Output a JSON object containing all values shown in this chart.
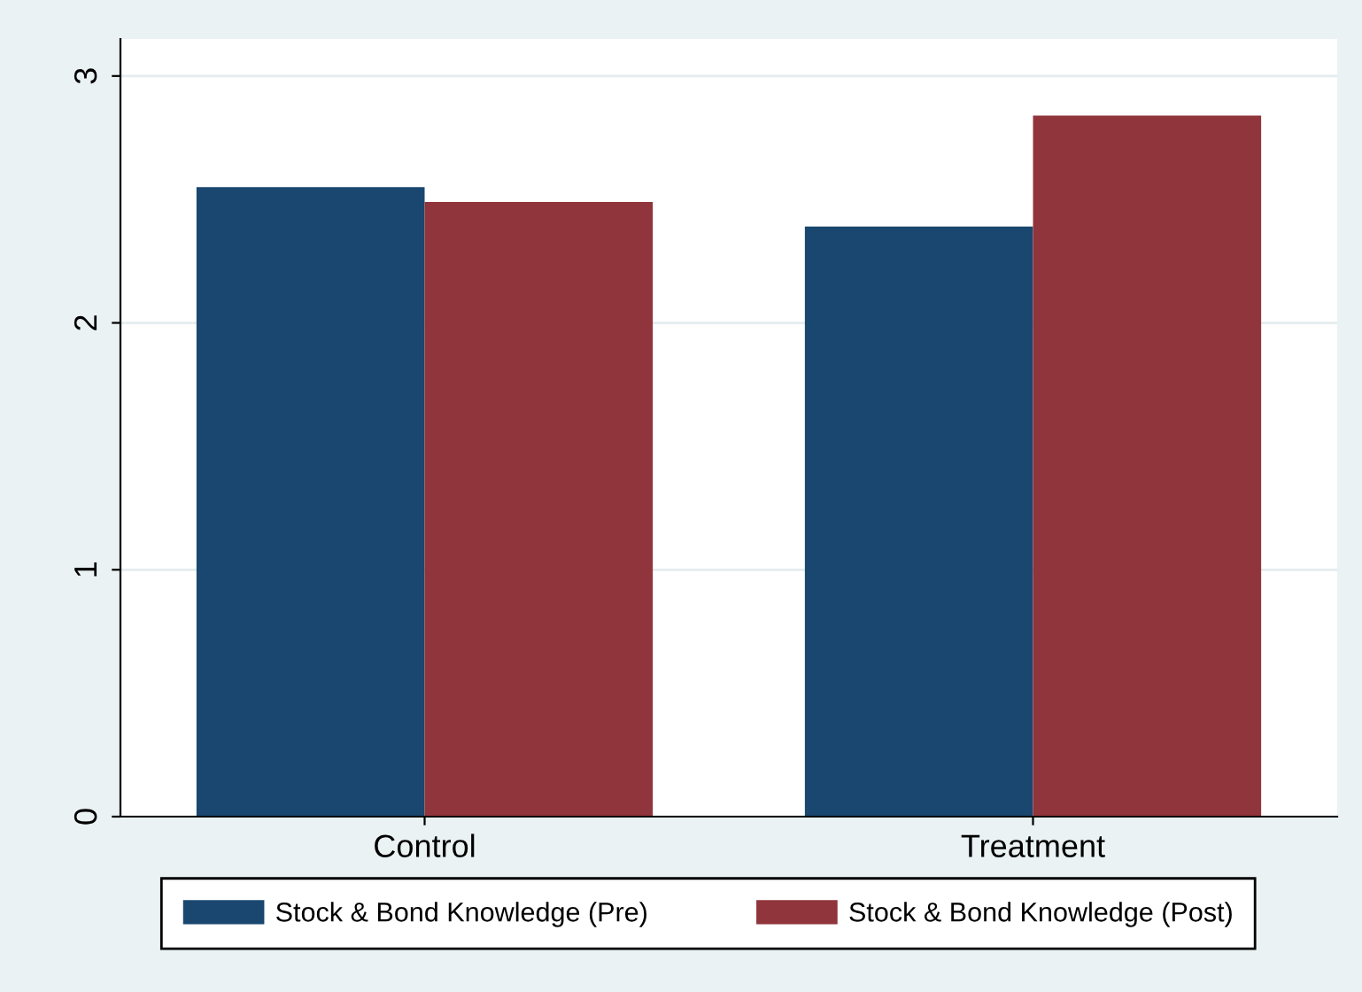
{
  "chart_data": {
    "type": "bar",
    "categories": [
      "Control",
      "Treatment"
    ],
    "series": [
      {
        "name": "Stock & Bond Knowledge (Pre)",
        "color": "#1a476f",
        "values": [
          2.55,
          2.39
        ]
      },
      {
        "name": "Stock & Bond Knowledge (Post)",
        "color": "#90353b",
        "values": [
          2.49,
          2.84
        ]
      }
    ],
    "ylim": [
      0,
      3.15
    ],
    "yticks": [
      0,
      1,
      2,
      3
    ],
    "grid": "y",
    "legend": "bottom"
  }
}
